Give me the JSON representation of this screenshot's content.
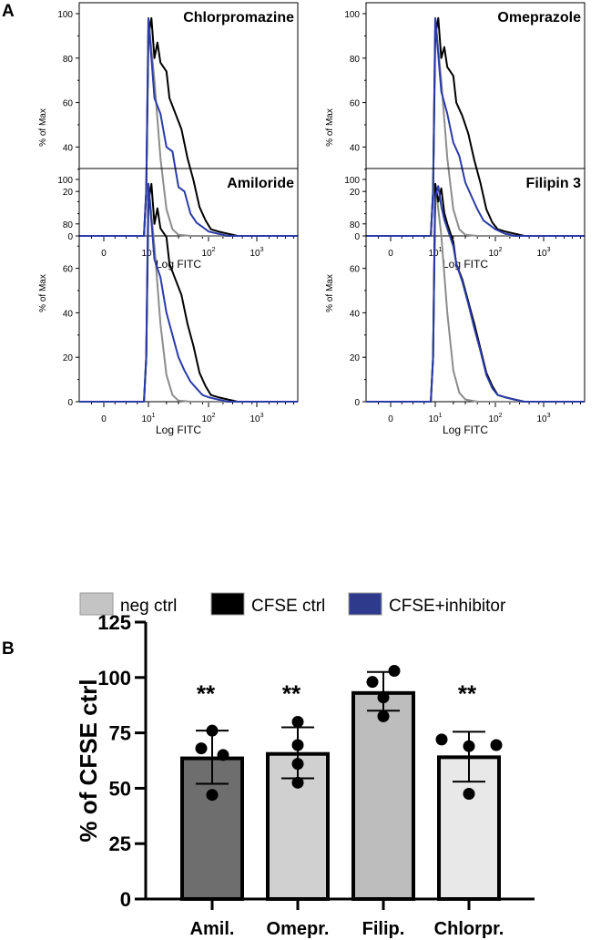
{
  "chart_data": [
    {
      "type": "line",
      "panel_label": "A",
      "title": "Chlorpromazine",
      "xlabel": "Log FITC",
      "ylabel": "% of Max",
      "ylim": [
        0,
        100
      ],
      "yticks": [
        0,
        20,
        40,
        60,
        80,
        100
      ],
      "xticks": [
        "0",
        "10^1",
        "10^2",
        "10^3"
      ],
      "series": [
        {
          "name": "neg ctrl",
          "x": [
            -0.5,
            0.9,
            0.95,
            1.0,
            1.1,
            1.2,
            1.3,
            1.4,
            1.5,
            1.7,
            4
          ],
          "y": [
            0,
            0,
            20,
            98,
            70,
            35,
            12,
            3,
            0.5,
            0,
            0
          ]
        },
        {
          "name": "CFSE ctrl",
          "x": [
            -0.5,
            0.9,
            0.95,
            1.0,
            1.05,
            1.1,
            1.15,
            1.2,
            1.3,
            1.35,
            1.45,
            1.55,
            1.65,
            1.75,
            1.85,
            1.95,
            2.05,
            2.2,
            2.4,
            2.6,
            4
          ],
          "y": [
            0,
            0,
            20,
            90,
            98,
            80,
            87,
            78,
            74,
            62,
            55,
            48,
            35,
            25,
            13,
            7,
            3,
            2,
            1,
            0,
            0
          ]
        },
        {
          "name": "CFSE+inhibitor",
          "x": [
            -0.5,
            0.9,
            0.95,
            1.0,
            1.1,
            1.2,
            1.3,
            1.4,
            1.5,
            1.6,
            1.7,
            1.8,
            1.9,
            2.0,
            2.2,
            2.4,
            4
          ],
          "y": [
            0,
            0,
            20,
            98,
            62,
            55,
            40,
            38,
            22,
            20,
            10,
            6,
            4,
            2,
            1,
            0,
            0
          ]
        }
      ]
    },
    {
      "type": "line",
      "title": "Omeprazole",
      "xlabel": "Log FITC",
      "ylabel": "% of Max",
      "ylim": [
        0,
        100
      ],
      "yticks": [
        0,
        20,
        40,
        60,
        80,
        100
      ],
      "xticks": [
        "0",
        "10^1",
        "10^2",
        "10^3"
      ],
      "series": [
        {
          "name": "neg ctrl",
          "x": [
            -0.5,
            0.9,
            0.95,
            1.0,
            1.1,
            1.2,
            1.3,
            1.4,
            1.5,
            1.7,
            4
          ],
          "y": [
            0,
            0,
            20,
            98,
            70,
            35,
            12,
            3,
            0.5,
            0,
            0
          ]
        },
        {
          "name": "CFSE ctrl",
          "x": [
            -0.5,
            0.9,
            0.95,
            1.0,
            1.05,
            1.1,
            1.15,
            1.2,
            1.3,
            1.35,
            1.45,
            1.55,
            1.65,
            1.75,
            1.85,
            1.95,
            2.05,
            2.2,
            2.4,
            2.6,
            4
          ],
          "y": [
            0,
            0,
            20,
            90,
            98,
            80,
            85,
            76,
            72,
            60,
            54,
            46,
            34,
            24,
            12,
            6,
            3,
            2,
            1,
            0,
            0
          ]
        },
        {
          "name": "CFSE+inhibitor",
          "x": [
            -0.5,
            0.9,
            0.95,
            1.0,
            1.1,
            1.2,
            1.3,
            1.4,
            1.5,
            1.6,
            1.7,
            1.8,
            1.9,
            2.0,
            2.2,
            2.4,
            4
          ],
          "y": [
            0,
            0,
            20,
            98,
            65,
            55,
            42,
            36,
            24,
            18,
            12,
            7,
            5,
            3,
            1,
            0,
            0
          ]
        }
      ]
    },
    {
      "type": "line",
      "title": "Amiloride",
      "xlabel": "Log FITC",
      "ylabel": "% of Max",
      "ylim": [
        0,
        100
      ],
      "yticks": [
        0,
        20,
        40,
        60,
        80,
        100
      ],
      "xticks": [
        "0",
        "10^1",
        "10^2",
        "10^3"
      ],
      "series": [
        {
          "name": "neg ctrl",
          "x": [
            -0.5,
            0.9,
            0.95,
            1.0,
            1.1,
            1.2,
            1.3,
            1.4,
            1.5,
            1.7,
            4
          ],
          "y": [
            0,
            0,
            20,
            98,
            70,
            35,
            12,
            3,
            0.5,
            0,
            0
          ]
        },
        {
          "name": "CFSE ctrl",
          "x": [
            -0.5,
            0.9,
            0.95,
            1.0,
            1.05,
            1.1,
            1.15,
            1.2,
            1.3,
            1.35,
            1.45,
            1.55,
            1.65,
            1.75,
            1.85,
            1.95,
            2.05,
            2.2,
            2.4,
            2.6,
            4
          ],
          "y": [
            0,
            0,
            20,
            90,
            98,
            80,
            87,
            78,
            74,
            62,
            55,
            48,
            35,
            25,
            13,
            7,
            3,
            2,
            1,
            0,
            0
          ]
        },
        {
          "name": "CFSE+inhibitor",
          "x": [
            -0.5,
            0.9,
            0.95,
            1.0,
            1.1,
            1.2,
            1.3,
            1.4,
            1.5,
            1.6,
            1.7,
            1.8,
            1.9,
            2.0,
            2.2,
            2.4,
            4
          ],
          "y": [
            0,
            0,
            20,
            98,
            64,
            56,
            40,
            30,
            20,
            14,
            9,
            6,
            3,
            2,
            1,
            0,
            0
          ]
        }
      ]
    },
    {
      "type": "line",
      "title": "Filipin 3",
      "xlabel": "Log FITC",
      "ylabel": "% of Max",
      "ylim": [
        0,
        100
      ],
      "yticks": [
        0,
        20,
        40,
        60,
        80,
        100
      ],
      "xticks": [
        "0",
        "10^1",
        "10^2",
        "10^3"
      ],
      "series": [
        {
          "name": "neg ctrl",
          "x": [
            -0.5,
            0.9,
            0.95,
            1.0,
            1.1,
            1.2,
            1.3,
            1.4,
            1.5,
            1.7,
            4
          ],
          "y": [
            0,
            0,
            20,
            98,
            75,
            40,
            14,
            4,
            1,
            0,
            0
          ]
        },
        {
          "name": "CFSE ctrl",
          "x": [
            -0.5,
            0.9,
            0.95,
            1.0,
            1.05,
            1.1,
            1.15,
            1.2,
            1.3,
            1.35,
            1.45,
            1.55,
            1.65,
            1.75,
            1.85,
            1.95,
            2.05,
            2.2,
            2.4,
            2.6,
            4
          ],
          "y": [
            0,
            0,
            20,
            98,
            90,
            96,
            85,
            80,
            72,
            62,
            55,
            45,
            35,
            24,
            13,
            7,
            3,
            2,
            1,
            0,
            0
          ]
        },
        {
          "name": "CFSE+inhibitor",
          "x": [
            -0.5,
            0.9,
            0.95,
            1.0,
            1.05,
            1.1,
            1.15,
            1.2,
            1.3,
            1.35,
            1.45,
            1.55,
            1.65,
            1.75,
            1.85,
            1.95,
            2.05,
            2.2,
            2.4,
            2.6,
            4
          ],
          "y": [
            0,
            0,
            20,
            92,
            97,
            88,
            82,
            78,
            70,
            62,
            54,
            44,
            33,
            23,
            12,
            6,
            3,
            2,
            1,
            0,
            0
          ]
        }
      ]
    },
    {
      "type": "bar",
      "panel_label": "B",
      "ylabel": "% of CFSE ctrl",
      "ylim": [
        0,
        125
      ],
      "yticks": [
        0,
        25,
        50,
        75,
        100,
        125
      ],
      "categories": [
        "Amil.",
        "Omepr.",
        "Filip.",
        "Chlorpr."
      ],
      "values": [
        63.5,
        65.5,
        93,
        64
      ],
      "error_low": [
        52,
        54.5,
        85,
        53
      ],
      "error_high": [
        76,
        77.5,
        102.5,
        75.5
      ],
      "points": [
        [
          76,
          68,
          65,
          47
        ],
        [
          80,
          69.5,
          61,
          52.5
        ],
        [
          103,
          98,
          91,
          82.5
        ],
        [
          72,
          69,
          69.5,
          47.5
        ]
      ],
      "annotations": [
        "**",
        "**",
        "",
        "**"
      ],
      "colors": [
        "#6e6e6e",
        "#d0d0d0",
        "#bdbdbd",
        "#e8e8e8"
      ]
    }
  ],
  "legend": [
    {
      "label": "neg ctrl",
      "color": "#c4c4c4"
    },
    {
      "label": "CFSE ctrl",
      "color": "#000000"
    },
    {
      "label": "CFSE+inhibitor",
      "color": "#2e3a8c"
    }
  ],
  "series_colors": {
    "neg ctrl": "#8c8c8c",
    "CFSE ctrl": "#000000",
    "CFSE+inhibitor": "#2b3ca8"
  }
}
